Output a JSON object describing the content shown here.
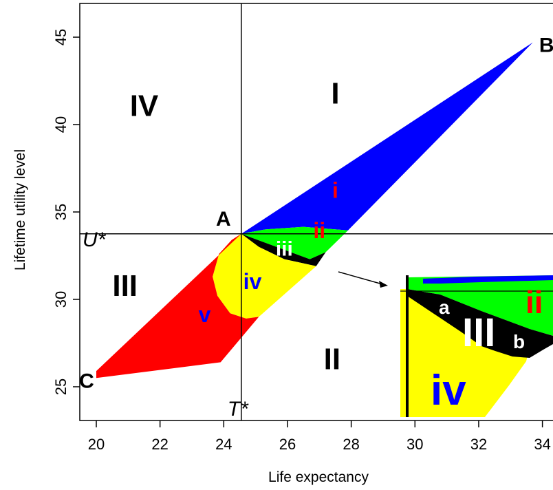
{
  "chart_data": {
    "type": "area",
    "xlabel": "Life expectancy",
    "ylabel": "Lifetime utility level",
    "xlim": [
      19.5,
      34.5
    ],
    "ylim": [
      23,
      47.5
    ],
    "x_ticks": [
      20,
      22,
      24,
      26,
      28,
      30,
      32,
      34
    ],
    "y_ticks": [
      25,
      30,
      35,
      40,
      45
    ],
    "grid": false,
    "legend": "none",
    "reference_lines": {
      "T_star": {
        "label": "T*",
        "x": 24.55
      },
      "U_star": {
        "label": "U*",
        "y": 33.75
      }
    },
    "points": [
      {
        "label": "A",
        "x": 24.55,
        "y": 33.75
      },
      {
        "label": "B",
        "x": 33.7,
        "y": 44.7
      },
      {
        "label": "C",
        "x": 20.0,
        "y": 25.5
      }
    ],
    "quadrant_labels": [
      {
        "label": "I",
        "x": 27.5,
        "y": 41.2
      },
      {
        "label": "II",
        "x": 27.4,
        "y": 26.0
      },
      {
        "label": "III",
        "x": 20.9,
        "y": 30.2
      },
      {
        "label": "IV",
        "x": 21.5,
        "y": 40.5
      }
    ],
    "regions": [
      {
        "label": "i",
        "color": "#0000ff",
        "label_color": "#ff0000",
        "label_x": 27.5,
        "label_y": 35.8,
        "polygon": [
          [
            24.55,
            33.75
          ],
          [
            33.7,
            44.7
          ],
          [
            27.9,
            33.95
          ],
          [
            26.5,
            34.15
          ],
          [
            25.3,
            34.0
          ]
        ]
      },
      {
        "label": "ii",
        "color": "#00ff00",
        "label_color": "#ff0000",
        "label_x": 27.0,
        "label_y": 33.5,
        "polygon": [
          [
            24.55,
            33.75
          ],
          [
            25.3,
            34.0
          ],
          [
            26.5,
            34.15
          ],
          [
            27.9,
            33.95
          ],
          [
            27.2,
            32.7
          ],
          [
            26.7,
            32.3
          ]
        ]
      },
      {
        "label": "iii",
        "color": "#000000",
        "label_color": "#ffffff",
        "label_x": 25.9,
        "label_y": 32.5,
        "polygon": [
          [
            24.55,
            33.75
          ],
          [
            26.7,
            32.3
          ],
          [
            27.2,
            32.7
          ],
          [
            26.9,
            31.9
          ],
          [
            25.9,
            32.3
          ],
          [
            25.1,
            33.0
          ]
        ]
      },
      {
        "label": "iv",
        "color": "#ffff00",
        "label_color": "#0000ff",
        "label_x": 24.9,
        "label_y": 30.6,
        "polygon": [
          [
            24.55,
            33.75
          ],
          [
            25.1,
            33.0
          ],
          [
            25.9,
            32.3
          ],
          [
            26.9,
            31.9
          ],
          [
            25.1,
            29.0
          ],
          [
            24.7,
            28.9
          ],
          [
            24.2,
            29.2
          ],
          [
            23.8,
            30.2
          ],
          [
            23.65,
            31.3
          ],
          [
            23.85,
            32.6
          ],
          [
            24.25,
            33.4
          ]
        ]
      },
      {
        "label": "v",
        "color": "#ff0000",
        "label_color": "#0000ff",
        "label_x": 23.4,
        "label_y": 28.7,
        "polygon": [
          [
            24.55,
            33.75
          ],
          [
            24.25,
            33.4
          ],
          [
            23.85,
            32.6
          ],
          [
            23.65,
            31.3
          ],
          [
            23.8,
            30.2
          ],
          [
            24.2,
            29.2
          ],
          [
            24.7,
            28.9
          ],
          [
            25.1,
            29.0
          ],
          [
            23.9,
            26.4
          ],
          [
            20.0,
            25.5
          ],
          [
            20.0,
            25.9
          ]
        ]
      }
    ],
    "inset": {
      "labels": [
        {
          "label": "ii",
          "color": "#ff0000"
        },
        {
          "label": "a",
          "color": "#ffffff"
        },
        {
          "label": "III",
          "color": "#ffffff"
        },
        {
          "label": "b",
          "color": "#ffffff"
        },
        {
          "label": "iv",
          "color": "#0000ff"
        }
      ]
    }
  }
}
